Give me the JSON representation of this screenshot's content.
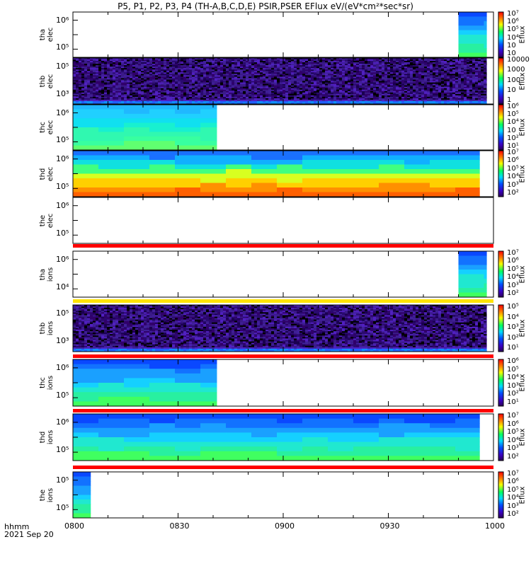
{
  "title": "P5, P1, P2, P3, P4 (TH-A,B,C,D,E) PSIR,PSER EFlux eV/(eV*cm²*sec*sr)",
  "time_axis": {
    "ticks": [
      "0800",
      "0830",
      "0900",
      "0930",
      "1000"
    ],
    "corner_label_1": "hhmm",
    "corner_label_2": "2021 Sep 20"
  },
  "colorbar_label": "Eflux",
  "chart_data": [
    {
      "type": "heatmap",
      "probe": "tha",
      "species": "elec",
      "ylabel": [
        "tha",
        "elec"
      ],
      "yticks": [
        "10⁶",
        "10⁵"
      ],
      "colorbar_ticks": [
        "10⁷",
        "10⁶",
        "10⁵",
        "10⁴",
        "10⁳",
        "10⁲"
      ],
      "data_intervals": [
        {
          "start": "09:50",
          "end": "09:58",
          "level": "medium"
        }
      ]
    },
    {
      "type": "heatmap",
      "probe": "thb",
      "species": "elec",
      "ylabel": [
        "thb",
        "elec"
      ],
      "yticks": [
        "10⁵",
        "10³"
      ],
      "colorbar_ticks": [
        "10000",
        "1000",
        "100",
        "10",
        "1"
      ],
      "data_intervals": [
        {
          "start": "08:00",
          "end": "09:58",
          "level": "noise"
        }
      ]
    },
    {
      "type": "heatmap",
      "probe": "thc",
      "species": "elec",
      "ylabel": [
        "thc",
        "elec"
      ],
      "yticks": [
        "10⁶",
        "10⁵"
      ],
      "colorbar_ticks": [
        "10⁶",
        "10⁵",
        "10⁴",
        "10⁳",
        "10²",
        "10¹"
      ],
      "data_intervals": [
        {
          "start": "08:00",
          "end": "08:41",
          "level": "medium-high"
        }
      ]
    },
    {
      "type": "heatmap",
      "probe": "thd",
      "species": "elec",
      "ylabel": [
        "thd",
        "elec"
      ],
      "yticks": [
        "10⁶",
        "10⁵"
      ],
      "colorbar_ticks": [
        "10⁷",
        "10⁶",
        "10⁵",
        "10⁴",
        "10³",
        "10²"
      ],
      "data_intervals": [
        {
          "start": "08:00",
          "end": "09:56",
          "level": "high"
        }
      ]
    },
    {
      "type": "heatmap",
      "probe": "the",
      "species": "elec",
      "ylabel": [
        "the",
        "elec"
      ],
      "yticks": [
        "10⁶",
        "10⁵"
      ],
      "colorbar_ticks": [],
      "data_intervals": []
    },
    {
      "type": "heatmap",
      "probe": "tha",
      "species": "ions",
      "ylabel": [
        "tha",
        "ions"
      ],
      "yticks": [
        "10⁶",
        "10⁴"
      ],
      "colorbar_ticks": [
        "10⁷",
        "10⁶",
        "10⁵",
        "10⁴",
        "10³",
        "10²"
      ],
      "data_intervals": [
        {
          "start": "09:50",
          "end": "09:58",
          "level": "medium"
        }
      ]
    },
    {
      "type": "heatmap",
      "probe": "thb",
      "species": "ions",
      "ylabel": [
        "thb",
        "ions"
      ],
      "yticks": [
        "10⁵",
        "10³"
      ],
      "colorbar_ticks": [
        "10⁵",
        "10⁴",
        "10³",
        "10²",
        "10¹"
      ],
      "data_intervals": [
        {
          "start": "08:00",
          "end": "09:58",
          "level": "noise"
        }
      ]
    },
    {
      "type": "heatmap",
      "probe": "thc",
      "species": "ions",
      "ylabel": [
        "thc",
        "ions"
      ],
      "yticks": [
        "10⁶",
        "10⁵"
      ],
      "colorbar_ticks": [
        "10⁶",
        "10⁵",
        "10⁴",
        "10³",
        "10²",
        "10¹"
      ],
      "data_intervals": [
        {
          "start": "08:00",
          "end": "08:41",
          "level": "medium"
        }
      ]
    },
    {
      "type": "heatmap",
      "probe": "thd",
      "species": "ions",
      "ylabel": [
        "thd",
        "ions"
      ],
      "yticks": [
        "10⁶",
        "10⁵"
      ],
      "colorbar_ticks": [
        "10⁷",
        "10⁶",
        "10⁵",
        "10⁴",
        "10³",
        "10²"
      ],
      "data_intervals": [
        {
          "start": "08:00",
          "end": "09:56",
          "level": "medium"
        }
      ]
    },
    {
      "type": "heatmap",
      "probe": "the",
      "species": "ions",
      "ylabel": [
        "the",
        "ions"
      ],
      "yticks": [
        "10⁵",
        "10⁵"
      ],
      "colorbar_ticks": [
        "10⁷",
        "10⁶",
        "10⁵",
        "10⁴",
        "10³",
        "10²"
      ],
      "data_intervals": [
        {
          "start": "08:00",
          "end": "08:05",
          "level": "medium"
        }
      ]
    }
  ]
}
